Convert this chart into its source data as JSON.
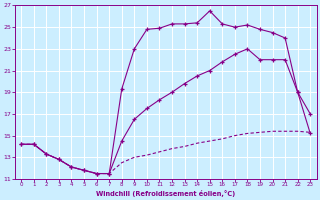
{
  "bg_color": "#cceeff",
  "grid_color": "#ffffff",
  "line_color": "#880088",
  "line1_x": [
    0,
    1,
    2,
    3,
    4,
    5,
    6,
    7,
    8,
    9,
    10,
    11,
    12,
    13,
    14,
    15,
    16,
    17,
    18,
    19,
    20,
    21,
    22,
    23
  ],
  "line1_y": [
    14.2,
    14.2,
    13.3,
    12.8,
    12.1,
    11.8,
    11.5,
    11.5,
    19.3,
    23.0,
    24.8,
    24.9,
    25.3,
    25.3,
    25.4,
    26.5,
    25.3,
    25.0,
    25.2,
    24.8,
    24.5,
    24.0,
    19.0,
    17.0
  ],
  "line2_x": [
    0,
    1,
    2,
    3,
    4,
    5,
    6,
    7,
    8,
    9,
    10,
    11,
    12,
    13,
    14,
    15,
    16,
    17,
    18,
    19,
    20,
    21,
    22,
    23
  ],
  "line2_y": [
    14.2,
    14.2,
    13.3,
    12.8,
    12.1,
    11.8,
    11.5,
    11.5,
    14.5,
    16.5,
    17.5,
    18.3,
    19.0,
    19.8,
    20.5,
    21.0,
    21.8,
    22.5,
    23.0,
    22.0,
    22.0,
    22.0,
    19.0,
    15.2
  ],
  "line3_x": [
    0,
    1,
    2,
    3,
    4,
    5,
    6,
    7,
    8,
    9,
    10,
    11,
    12,
    13,
    14,
    15,
    16,
    17,
    18,
    19,
    20,
    21,
    22,
    23
  ],
  "line3_y": [
    14.2,
    14.2,
    13.3,
    12.8,
    12.1,
    11.8,
    11.5,
    11.5,
    12.5,
    13.0,
    13.2,
    13.5,
    13.8,
    14.0,
    14.3,
    14.5,
    14.7,
    15.0,
    15.2,
    15.3,
    15.4,
    15.4,
    15.4,
    15.3
  ],
  "xlabel": "Windchill (Refroidissement éolien,°C)",
  "xlim": [
    -0.5,
    23.5
  ],
  "ylim": [
    11,
    27
  ],
  "xticks": [
    0,
    1,
    2,
    3,
    4,
    5,
    6,
    7,
    8,
    9,
    10,
    11,
    12,
    13,
    14,
    15,
    16,
    17,
    18,
    19,
    20,
    21,
    22,
    23
  ],
  "yticks": [
    11,
    13,
    15,
    17,
    19,
    21,
    23,
    25,
    27
  ]
}
